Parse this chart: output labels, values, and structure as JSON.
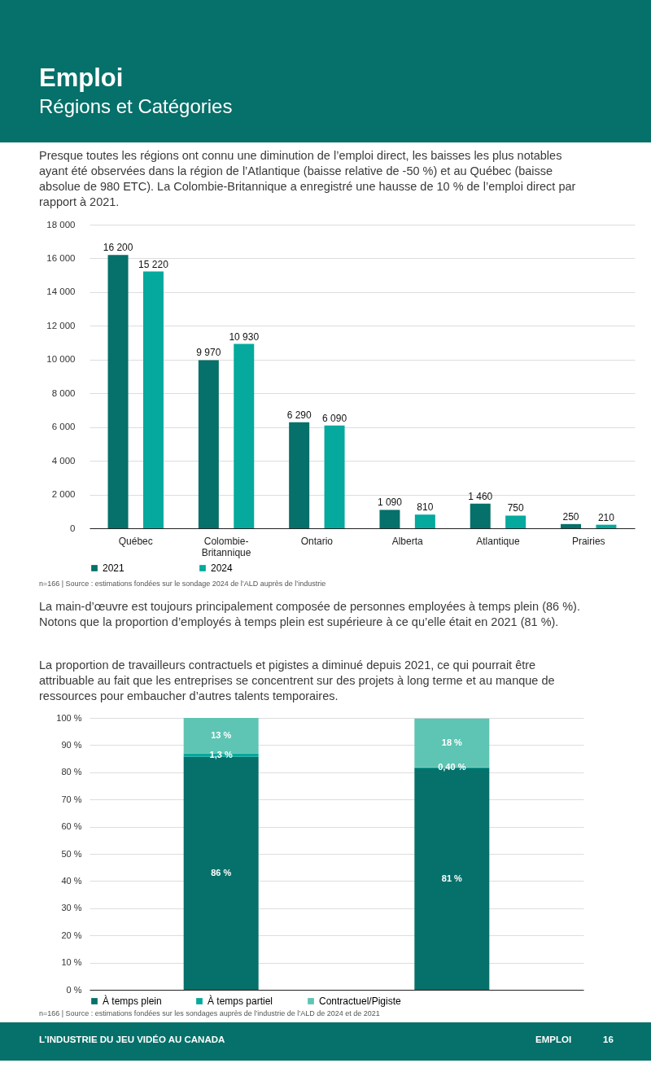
{
  "chart_data": [
    {
      "type": "bar",
      "title": "Emploi",
      "subtitle": "Régions et Catégories",
      "annotations": [
        "Presque toutes les régions ont connu une diminution de l’emploi direct, les baisses les plus notables ayant été observées dans la région de l’Atlantique (baisse relative de -50 %) et au Québec (baisse absolue de 980 ETC). La Colombie-Britannique a enregistré une hausse de 10 % de l’emploi direct par rapport à 2021.",
        "n=166 | Source : estimations fondées sur le sondage 2024 de l’ALD auprès de l’industrie"
      ],
      "categories": [
        "Québec",
        "Colombie-Britannique",
        "Ontario",
        "Alberta",
        "Atlantique",
        "Prairies"
      ],
      "series": [
        {
          "name": "2021",
          "color": "#06706a",
          "values": [
            16200,
            9970,
            6290,
            1090,
            1460,
            250
          ]
        },
        {
          "name": "2024",
          "color": "#05a99d",
          "values": [
            15220,
            10930,
            6090,
            810,
            750,
            210
          ]
        }
      ],
      "ylim": [
        0,
        18000
      ],
      "yticks": [
        {
          "value": 0,
          "label": "0"
        },
        {
          "value": 2000,
          "label": "2 000"
        },
        {
          "value": 4000,
          "label": "4 000"
        },
        {
          "value": 6000,
          "label": "6 000"
        },
        {
          "value": 8000,
          "label": "8 000"
        },
        {
          "value": 10000,
          "label": "10 000"
        },
        {
          "value": 12000,
          "label": "12 000"
        },
        {
          "value": 14000,
          "label": "14 000"
        },
        {
          "value": 16000,
          "label": "16 000"
        },
        {
          "value": 18000,
          "label": "18 000"
        }
      ],
      "grid": "y",
      "legend": "bottom",
      "data_labels": true
    },
    {
      "type": "bar",
      "stacked": true,
      "annotations": [
        "La main-d’œuvre est toujours principalement composée de personnes employées à temps plein (86 %). Notons que la proportion d’employés à temps plein est supérieure à ce qu’elle était en 2021 (81 %).",
        "La proportion de travailleurs contractuels et pigistes a diminué depuis 2021, ce qui pourrait être attribuable au fait que les entreprises se concentrent sur des projets à long terme et au manque de ressources pour embaucher d’autres talents temporaires.",
        "n=166 | Source : estimations fondées sur les sondages auprès de l’industrie de l’ALD de 2024 et de 2021",
        "L’INDUSTRIE DU JEU VIDÉO AU CANADA",
        "EMPLOI",
        "16"
      ],
      "categories": [
        null,
        null
      ],
      "series": [
        {
          "name": "À temps plein",
          "color": "#06706a",
          "values": [
            85.7,
            81.4
          ],
          "value_labels": [
            "86 %",
            "81 %"
          ]
        },
        {
          "name": "À temps partiel",
          "color": "#05a99d",
          "values": [
            1.3,
            0.4
          ],
          "value_labels": [
            "1,3 %",
            "0,40 %"
          ]
        },
        {
          "name": "Contractuel/Pigiste",
          "color": "#5ec4b3",
          "values": [
            13,
            18
          ],
          "value_labels": [
            "13 %",
            "18 %"
          ]
        }
      ],
      "ylim": [
        0,
        100
      ],
      "yticks": [
        {
          "value": 0,
          "label": "0 %"
        },
        {
          "value": 10,
          "label": "10 %"
        },
        {
          "value": 20,
          "label": "20 %"
        },
        {
          "value": 30,
          "label": "30 %"
        },
        {
          "value": 40,
          "label": "40 %"
        },
        {
          "value": 50,
          "label": "50 %"
        },
        {
          "value": 60,
          "label": "60 %"
        },
        {
          "value": 70,
          "label": "70 %"
        },
        {
          "value": 80,
          "label": "80 %"
        },
        {
          "value": 90,
          "label": "90 %"
        },
        {
          "value": 100,
          "label": "100 %"
        }
      ],
      "grid": "y",
      "legend": "bottom",
      "tick_labels": "y"
    }
  ]
}
